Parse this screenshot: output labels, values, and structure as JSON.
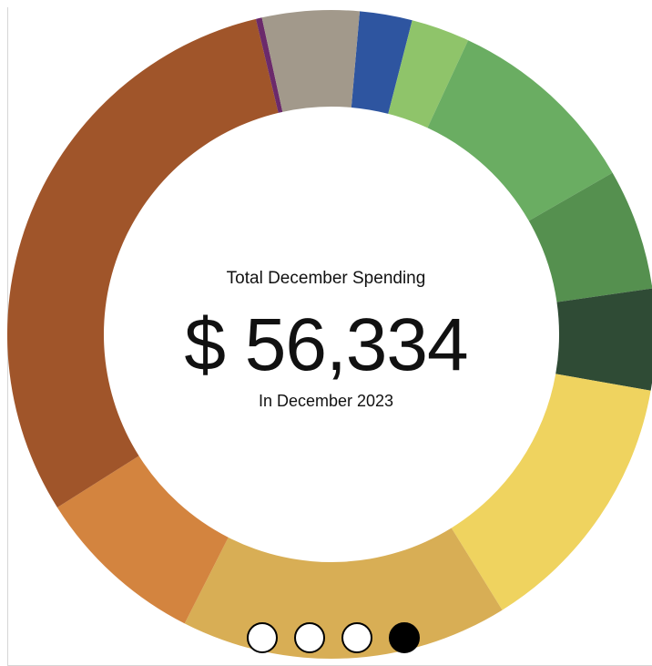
{
  "center": {
    "subtitle": "Total December Spending",
    "total": "$ 56,334",
    "period": "In December 2023"
  },
  "pager": {
    "count": 4,
    "active_index": 3
  },
  "chart_data": {
    "type": "pie",
    "donut": true,
    "start_angle_deg": 5,
    "labels_shown": false,
    "slices": [
      {
        "value": 2.6,
        "color": "#2e55a0"
      },
      {
        "value": 2.9,
        "color": "#8fc46a"
      },
      {
        "value": 9.7,
        "color": "#6aad62"
      },
      {
        "value": 6.0,
        "color": "#55904f"
      },
      {
        "value": 5.0,
        "color": "#2f4b35"
      },
      {
        "value": 13.3,
        "color": "#efd35f"
      },
      {
        "value": 16.2,
        "color": "#d8ae55"
      },
      {
        "value": 8.5,
        "color": "#d3843f"
      },
      {
        "value": 30.0,
        "color": "#a0552a"
      },
      {
        "value": 0.3,
        "color": "#6b2a6b"
      },
      {
        "value": 4.8,
        "color": "#a2998b"
      }
    ]
  }
}
